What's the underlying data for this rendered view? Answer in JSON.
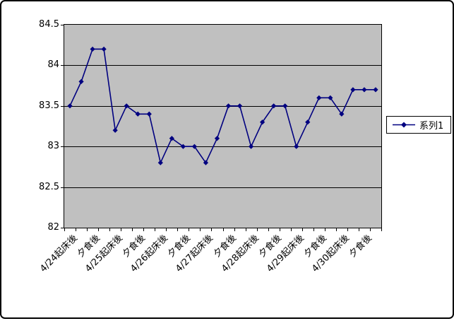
{
  "chart_data": {
    "type": "line",
    "title": "",
    "xlabel": "",
    "ylabel": "",
    "plot_bg": "#c0c0c0",
    "grid": "on",
    "legend_position": "right",
    "x_count": 28,
    "categories_shown": [
      "4/24起床後",
      "夕食後",
      "4/25起床後",
      "夕食後",
      "4/26起床後",
      "夕食後",
      "4/27起床後",
      "夕食後",
      "4/28起床後",
      "夕食後",
      "4/29起床後",
      "夕食後",
      "4/30起床後",
      "夕食後"
    ],
    "category_label_every": 2,
    "series": [
      {
        "name": "系列1",
        "color": "#000080",
        "marker": "diamond",
        "values": [
          83.5,
          83.8,
          84.2,
          84.2,
          83.2,
          83.5,
          83.4,
          83.4,
          82.8,
          83.1,
          83.0,
          83.0,
          82.8,
          83.1,
          83.5,
          83.5,
          83.0,
          83.3,
          83.5,
          83.5,
          83.0,
          83.3,
          83.6,
          83.6,
          83.4,
          83.7,
          83.7,
          83.7
        ]
      }
    ],
    "y_axis": {
      "min": 82,
      "max": 84.5,
      "step": 0.5,
      "tick_labels": [
        "84.5",
        "84",
        "83.5",
        "83",
        "82.5",
        "82"
      ]
    },
    "legend": {
      "entries": [
        "系列1"
      ]
    }
  }
}
